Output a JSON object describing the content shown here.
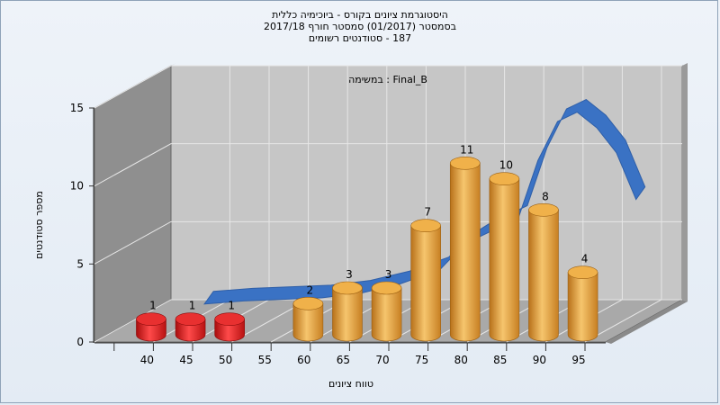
{
  "title_lines": [
    "היסטוגרמת ציונים בקורס - ביוכימיה כללית",
    "בסמסטר  (01/2017)  סמסטר חורף 2017/18",
    "187 - סטודנטים רשומים"
  ],
  "colors": {
    "fail_bar": "#d81d1d",
    "pass_bar": "#e3a23c",
    "curve": "#3a72c4",
    "back_wall": "#c6c6c6",
    "side_wall": "#8f8f8f",
    "floor": "#a9a9a9"
  },
  "chart_data": {
    "type": "bar",
    "title": "Final_B : במשימה",
    "xlabel": "טווח ציונים",
    "ylabel": "מספר סטודנטים",
    "ylim": [
      0,
      15
    ],
    "yticks": [
      0,
      5,
      10,
      15
    ],
    "x_tick_labels": [
      "40",
      "45",
      "50",
      "55",
      "60",
      "65",
      "70",
      "75",
      "80",
      "85",
      "90",
      "95"
    ],
    "categories": [
      "40",
      "45",
      "50",
      "60",
      "65",
      "70",
      "75",
      "80",
      "85",
      "90",
      "95"
    ],
    "values": [
      1,
      1,
      1,
      2,
      3,
      3,
      7,
      11,
      10,
      8,
      4
    ],
    "data_labels": [
      "1",
      "1",
      "1",
      "2",
      "3",
      "3",
      "7",
      "11",
      "10",
      "8",
      "4"
    ],
    "bar_status": [
      "fail",
      "fail",
      "fail",
      "pass",
      "pass",
      "pass",
      "pass",
      "pass",
      "pass",
      "pass",
      "pass"
    ],
    "curve": {
      "x": [
        40,
        45,
        50,
        55,
        60,
        65,
        70,
        72.5,
        75,
        77.5,
        80,
        82.5,
        85,
        87.5,
        90,
        92.5,
        95
      ],
      "y": [
        0.3,
        0.5,
        0.6,
        0.7,
        1.0,
        1.6,
        2.5,
        3.8,
        4.6,
        5.2,
        5.8,
        9.5,
        12.0,
        12.6,
        11.6,
        10.0,
        7.0
      ]
    },
    "grid": true
  }
}
